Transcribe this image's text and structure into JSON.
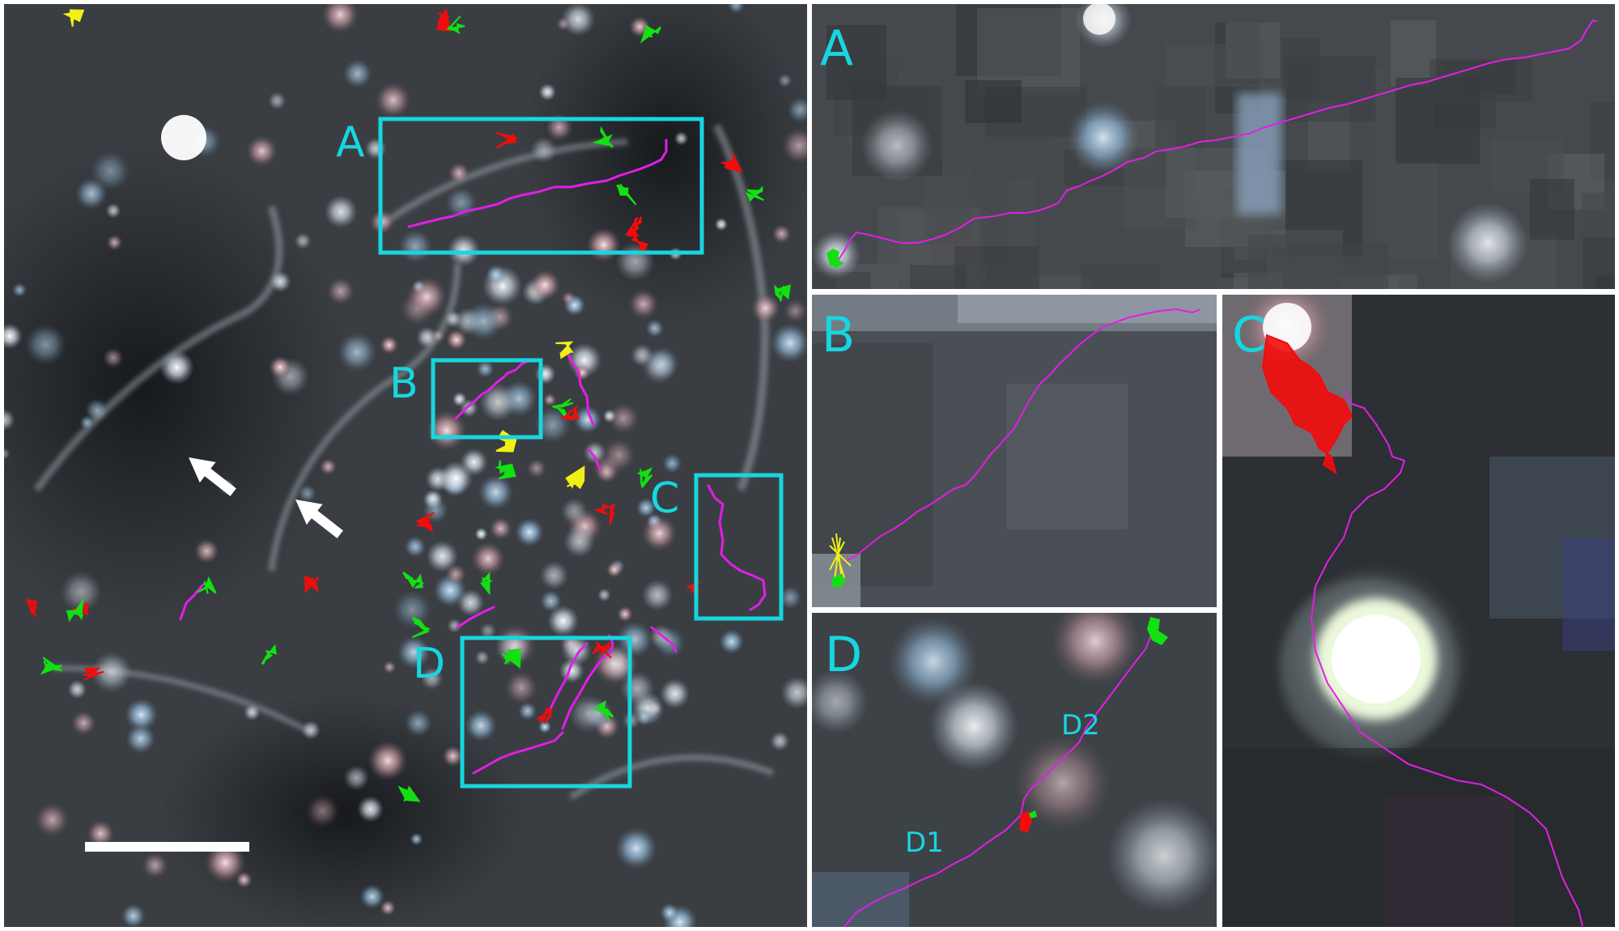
{
  "figure": {
    "colors": {
      "box": "#17d6e0",
      "track_magenta": "#e21ee6",
      "track_red": "#f20c0c",
      "track_green": "#12e012",
      "track_yellow": "#f0f014",
      "arrow": "#ffffff",
      "scale_bar": "#ffffff"
    },
    "overview": {
      "box_labels": [
        "A",
        "B",
        "C",
        "D"
      ],
      "arrows": [
        "arrow-1",
        "arrow-2"
      ]
    },
    "insets": {
      "a": {
        "label": "A"
      },
      "b": {
        "label": "B"
      },
      "c": {
        "label": "C"
      },
      "d": {
        "label": "D",
        "track_labels": [
          "D1",
          "D2"
        ]
      }
    }
  }
}
